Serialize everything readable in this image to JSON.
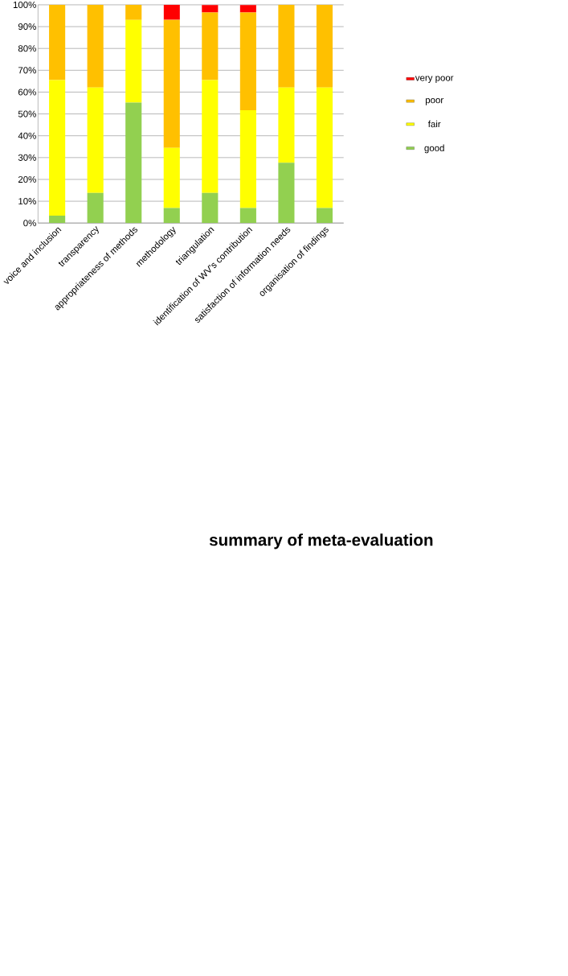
{
  "chart_data": {
    "type": "bar",
    "stacked": true,
    "title": "summary of meta-evaluation",
    "categories": [
      "voice and inclusion",
      "transparency",
      "appropriateness of methods",
      "methodology",
      "triangulation",
      "identification of WV's contribution",
      "satisfaction of information needs",
      "organisation of findings"
    ],
    "series": [
      {
        "name": "good",
        "color": "#92d050",
        "values": [
          3.4,
          13.8,
          55.2,
          6.9,
          13.8,
          6.9,
          27.6,
          6.9
        ]
      },
      {
        "name": "fair",
        "color": "#ffff00",
        "values": [
          62.1,
          48.3,
          37.9,
          27.6,
          51.7,
          44.8,
          34.5,
          55.2
        ]
      },
      {
        "name": "poor",
        "color": "#ffc000",
        "values": [
          34.5,
          37.9,
          6.9,
          58.6,
          31.0,
          44.8,
          37.9,
          37.9
        ]
      },
      {
        "name": "very poor",
        "color": "#ff0000",
        "values": [
          0,
          0,
          0,
          6.9,
          3.4,
          3.4,
          0,
          0
        ]
      }
    ],
    "ylim": [
      0,
      100
    ],
    "yticks": [
      {
        "value": 0,
        "label": "0%"
      },
      {
        "value": 10,
        "label": "10%"
      },
      {
        "value": 20,
        "label": "20%"
      },
      {
        "value": 30,
        "label": "30%"
      },
      {
        "value": 40,
        "label": "40%"
      },
      {
        "value": 50,
        "label": "50%"
      },
      {
        "value": 60,
        "label": "60%"
      },
      {
        "value": 70,
        "label": "70%"
      },
      {
        "value": 80,
        "label": "80%"
      },
      {
        "value": 90,
        "label": "90%"
      },
      {
        "value": 100,
        "label": "100%"
      }
    ],
    "grid": "y",
    "legend": "right"
  }
}
